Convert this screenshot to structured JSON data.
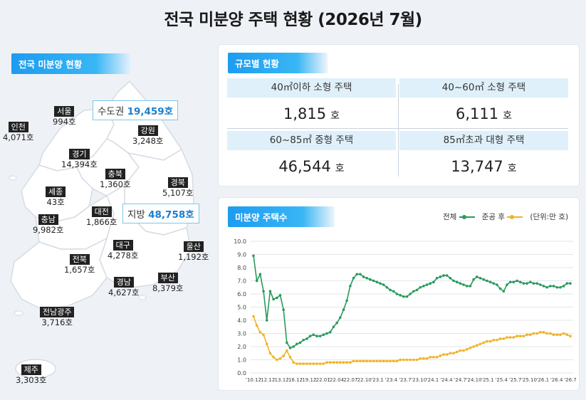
{
  "page_title": "전국 미분양 주택 현황 (2026년 7월)",
  "map_section": {
    "tag": "전국 미분양 현황",
    "capital_callout": {
      "label": "수도권",
      "value": "19,459호"
    },
    "local_callout": {
      "label": "지방",
      "value": "48,758호"
    },
    "regions": [
      {
        "name": "인천",
        "value": "4,071호"
      },
      {
        "name": "서울",
        "value": "994호"
      },
      {
        "name": "경기",
        "value": "14,394호"
      },
      {
        "name": "강원",
        "value": "3,248호"
      },
      {
        "name": "충북",
        "value": "1,360호"
      },
      {
        "name": "경북",
        "value": "5,107호"
      },
      {
        "name": "세종",
        "value": "43호"
      },
      {
        "name": "충남",
        "value": "9,982호"
      },
      {
        "name": "대전",
        "value": "1,866호"
      },
      {
        "name": "대구",
        "value": "4,278호"
      },
      {
        "name": "울산",
        "value": "1,192호"
      },
      {
        "name": "전북",
        "value": "1,657호"
      },
      {
        "name": "경남",
        "value": "4,627호"
      },
      {
        "name": "부산",
        "value": "8,379호"
      },
      {
        "name": "전남광주",
        "value": "3,716호"
      },
      {
        "name": "제주",
        "value": "3,303호"
      }
    ]
  },
  "size_section": {
    "tag": "규모별 현황",
    "cells": [
      {
        "label": "40㎡이하 소형 주택",
        "value": "1,815",
        "unit": "호"
      },
      {
        "label": "40~60㎡ 소형 주택",
        "value": "6,111",
        "unit": "호"
      },
      {
        "label": "60~85㎡ 중형 주택",
        "value": "46,544",
        "unit": "호"
      },
      {
        "label": "85㎡초과 대형 주택",
        "value": "13,747",
        "unit": "호"
      }
    ]
  },
  "chart_section": {
    "tag": "미분양 주택수",
    "legend": {
      "total": "전체",
      "completed": "준공 후",
      "unit": "(단위:만 호)"
    }
  },
  "colors": {
    "accent": "#1d9bf0",
    "total": "#2a9a5c",
    "completed": "#f0b429",
    "map_fill": "#ffffff",
    "map_bg": "#eef1f6"
  },
  "chart_data": {
    "type": "line",
    "title": "",
    "xlabel": "",
    "ylabel": "",
    "ylim": [
      0,
      10
    ],
    "yticks": [
      "0.0",
      "1.0",
      "2.0",
      "3.0",
      "4.0",
      "5.0",
      "6.0",
      "7.0",
      "8.0",
      "9.0",
      "10.0"
    ],
    "xtick_labels": [
      "'10.12",
      "'12.12",
      "'13.12",
      "'16.12",
      "'19.12",
      "'22.01",
      "'22.04",
      "'22.07",
      "'22.10",
      "'23.1",
      "'23.4",
      "'23.7",
      "'23.10",
      "'24.1",
      "'24.4",
      "'24.7",
      "'24.10",
      "'25.1",
      "'25.4",
      "'25.7",
      "'25.10",
      "'26.1",
      "'26.4",
      "'26.7"
    ],
    "series": [
      {
        "name": "전체",
        "values": [
          8.9,
          7.0,
          7.5,
          6.2,
          4.0,
          6.2,
          5.6,
          5.7,
          5.9,
          4.8,
          2.3,
          1.9,
          2.0,
          2.2,
          2.3,
          2.5,
          2.6,
          2.8,
          2.9,
          2.8,
          2.8,
          2.9,
          3.0,
          3.1,
          3.5,
          3.8,
          4.2,
          4.8,
          5.5,
          6.6,
          7.2,
          7.5,
          7.5,
          7.3,
          7.2,
          7.1,
          7.0,
          6.9,
          6.8,
          6.7,
          6.5,
          6.3,
          6.2,
          6.0,
          5.9,
          5.8,
          5.8,
          6.0,
          6.2,
          6.3,
          6.5,
          6.6,
          6.7,
          6.8,
          6.9,
          7.2,
          7.3,
          7.4,
          7.4,
          7.2,
          7.0,
          6.9,
          6.8,
          6.7,
          6.6,
          6.6,
          7.1,
          7.3,
          7.2,
          7.1,
          7.0,
          6.9,
          6.8,
          6.7,
          6.4,
          6.2,
          6.7,
          6.9,
          6.9,
          7.0,
          6.9,
          6.8,
          6.8,
          6.9,
          6.8,
          6.8,
          6.7,
          6.6,
          6.5,
          6.6,
          6.6,
          6.5,
          6.5,
          6.6,
          6.8,
          6.8
        ]
      },
      {
        "name": "준공 후",
        "values": [
          4.3,
          3.6,
          3.1,
          2.9,
          2.2,
          1.5,
          1.2,
          1.0,
          1.1,
          1.3,
          1.7,
          1.2,
          0.8,
          0.7,
          0.7,
          0.7,
          0.7,
          0.7,
          0.7,
          0.7,
          0.7,
          0.7,
          0.8,
          0.8,
          0.8,
          0.8,
          0.8,
          0.8,
          0.8,
          0.8,
          0.9,
          0.9,
          0.9,
          0.9,
          0.9,
          0.9,
          0.9,
          0.9,
          0.9,
          0.9,
          0.9,
          0.9,
          0.9,
          0.9,
          1.0,
          1.0,
          1.0,
          1.0,
          1.0,
          1.0,
          1.1,
          1.1,
          1.1,
          1.2,
          1.2,
          1.2,
          1.3,
          1.4,
          1.4,
          1.5,
          1.5,
          1.6,
          1.7,
          1.7,
          1.8,
          1.9,
          2.0,
          2.1,
          2.2,
          2.3,
          2.4,
          2.4,
          2.5,
          2.5,
          2.6,
          2.6,
          2.7,
          2.7,
          2.7,
          2.8,
          2.8,
          2.8,
          2.9,
          2.9,
          3.0,
          3.0,
          3.1,
          3.1,
          3.0,
          3.0,
          2.9,
          2.9,
          2.9,
          3.0,
          2.9,
          2.8
        ]
      }
    ],
    "grid": true,
    "legend_position": "top-right"
  }
}
